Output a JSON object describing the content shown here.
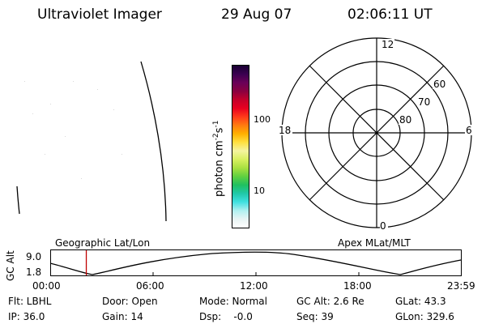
{
  "header": {
    "instrument": "Ultraviolet Imager",
    "date": "29 Aug 07",
    "time": "02:06:11 UT"
  },
  "colorbar": {
    "label": "photon cm",
    "label_exp1": "-2",
    "label_s": "s",
    "label_exp2": "-1",
    "ticks": [
      "100",
      "10"
    ],
    "colors": [
      "#1a0033",
      "#3a0050",
      "#6a0058",
      "#8a0040",
      "#c4002a",
      "#e80020",
      "#ff3a1a",
      "#ff7a10",
      "#ffb000",
      "#ffe040",
      "#f4f4a0",
      "#d8f060",
      "#a8e040",
      "#60d040",
      "#20c060",
      "#20c8a8",
      "#40e0e0",
      "#b0f0f0",
      "#e8f4f4",
      "#ffffff"
    ]
  },
  "polar": {
    "top_label": "12",
    "bottom_label": "0",
    "left_label": "18",
    "right_label": "6",
    "lat_labels": [
      "60",
      "70",
      "80"
    ]
  },
  "orbit": {
    "y_axis_label": "GC Alt",
    "y_max": "9.0",
    "y_min": "1.8",
    "left_label": "Geographic Lat/Lon",
    "right_label": "Apex MLat/MLT",
    "x_ticks": [
      "00:00",
      "06:00",
      "12:00",
      "18:00",
      "23:59"
    ],
    "current_time_hours": 2.103
  },
  "info": {
    "row1": [
      "Flt: LBHL",
      "Door: Open",
      "Mode: Normal",
      "GC Alt: 2.6 Re",
      "GLat: 43.3"
    ],
    "row2": [
      "IP: 36.0",
      "Gain: 14",
      "Dsp:    -0.0",
      "Seq: 39",
      "GLon: 329.6"
    ]
  },
  "colors": {
    "marker": "#c00000",
    "ink": "#000000"
  }
}
